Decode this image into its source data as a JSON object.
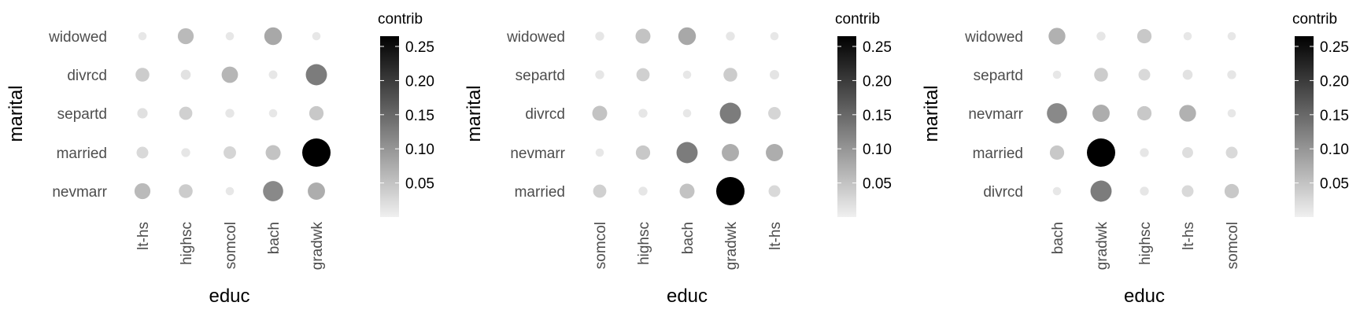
{
  "chart_data": [
    {
      "type": "balloon",
      "xlabel": "educ",
      "ylabel": "marital",
      "legend_title": "contrib",
      "legend_ticks": [
        "0.05",
        "0.10",
        "0.15",
        "0.20",
        "0.25"
      ],
      "legend_range": [
        0,
        0.265
      ],
      "x_categories": [
        "lt-hs",
        "highsc",
        "somcol",
        "bach",
        "gradwk"
      ],
      "y_categories": [
        "widowed",
        "divrcd",
        "separtd",
        "married",
        "nevmarr"
      ],
      "values": [
        [
          0.004,
          0.055,
          0.004,
          0.075,
          0.004
        ],
        [
          0.035,
          0.01,
          0.06,
          0.005,
          0.125
        ],
        [
          0.012,
          0.03,
          0.006,
          0.004,
          0.04
        ],
        [
          0.02,
          0.006,
          0.025,
          0.045,
          0.265
        ],
        [
          0.055,
          0.035,
          0.004,
          0.11,
          0.07
        ]
      ]
    },
    {
      "type": "balloon",
      "xlabel": "educ",
      "ylabel": "marital",
      "legend_title": "contrib",
      "legend_ticks": [
        "0.05",
        "0.10",
        "0.15",
        "0.20",
        "0.25"
      ],
      "legend_range": [
        0,
        0.265
      ],
      "x_categories": [
        "somcol",
        "highsc",
        "bach",
        "gradwk",
        "lt-hs"
      ],
      "y_categories": [
        "widowed",
        "separtd",
        "divrcd",
        "nevmarr",
        "married"
      ],
      "values": [
        [
          0.006,
          0.045,
          0.075,
          0.006,
          0.004
        ],
        [
          0.006,
          0.03,
          0.004,
          0.035,
          0.008
        ],
        [
          0.045,
          0.006,
          0.004,
          0.125,
          0.025
        ],
        [
          0.004,
          0.04,
          0.125,
          0.07,
          0.07
        ],
        [
          0.03,
          0.006,
          0.045,
          0.265,
          0.02
        ]
      ]
    },
    {
      "type": "balloon",
      "xlabel": "educ",
      "ylabel": "marital",
      "legend_title": "contrib",
      "legend_ticks": [
        "0.05",
        "0.10",
        "0.15",
        "0.20",
        "0.25"
      ],
      "legend_range": [
        0,
        0.265
      ],
      "x_categories": [
        "bach",
        "gradwk",
        "highsc",
        "lt-hs",
        "somcol"
      ],
      "y_categories": [
        "widowed",
        "separtd",
        "nevmarr",
        "married",
        "divrcd"
      ],
      "values": [
        [
          0.065,
          0.006,
          0.04,
          0.004,
          0.004
        ],
        [
          0.004,
          0.035,
          0.02,
          0.01,
          0.006
        ],
        [
          0.11,
          0.07,
          0.04,
          0.065,
          0.004
        ],
        [
          0.04,
          0.265,
          0.006,
          0.015,
          0.02
        ],
        [
          0.004,
          0.125,
          0.006,
          0.02,
          0.04
        ]
      ]
    }
  ]
}
